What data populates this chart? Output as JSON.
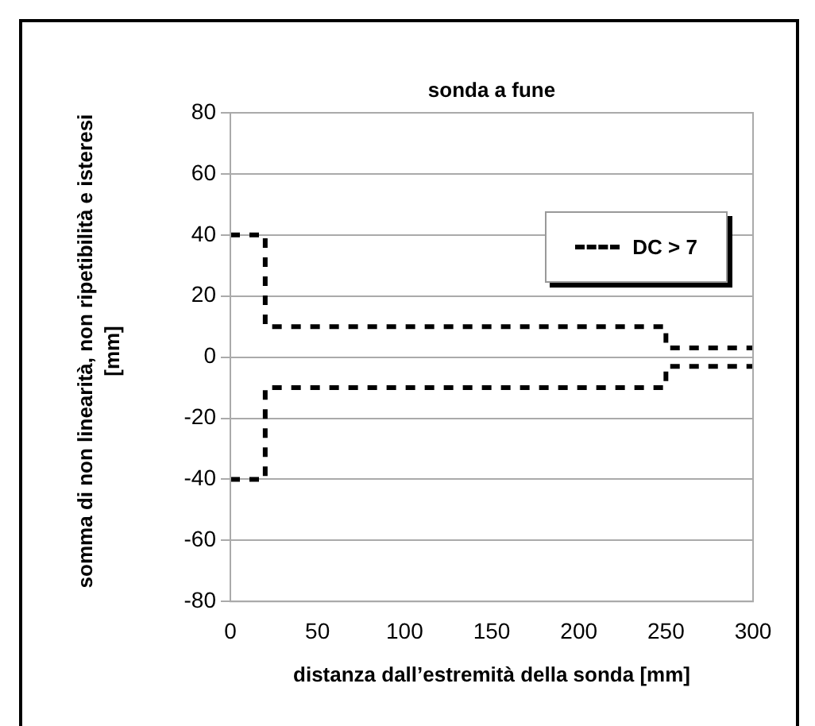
{
  "chart_data": {
    "type": "step",
    "title": "sonda a fune",
    "xlabel": "distanza dall’estremità della sonda [mm]",
    "ylabel": "somma di non linearità, non ripetibilità e isteresi [mm]",
    "x": [
      0,
      20,
      250,
      300
    ],
    "series": [
      {
        "name": "DC > 7",
        "color": "#000000",
        "values": [
          40,
          10,
          3,
          3
        ]
      },
      {
        "color": "#000000",
        "values": [
          -40,
          -10,
          -3,
          -3
        ]
      }
    ],
    "xlim": [
      0,
      300
    ],
    "xticks": [
      0,
      50,
      100,
      150,
      200,
      250,
      300
    ],
    "ylim": [
      -80,
      80
    ],
    "yticks": [
      -80,
      -60,
      -40,
      -20,
      0,
      20,
      40,
      60,
      80
    ],
    "grid": "y",
    "legend": "top right",
    "line_style": "dashed",
    "marker": "none"
  }
}
